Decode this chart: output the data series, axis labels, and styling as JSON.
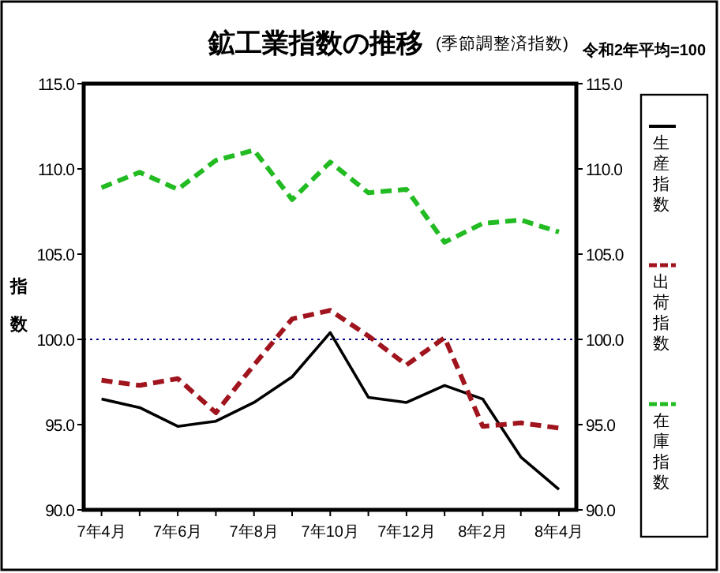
{
  "chart_data": {
    "type": "line",
    "title": "鉱工業指数の推移",
    "subtitle": "(季節調整済指数)",
    "annotations": [
      "令和2年平均=100"
    ],
    "ylabel": "指数",
    "categories": [
      "7年4月",
      null,
      "7年6月",
      null,
      "7年8月",
      null,
      "7年10月",
      null,
      "7年12月",
      null,
      "8年2月",
      null,
      "8年4月"
    ],
    "series": [
      {
        "name": "生産指数",
        "color": "#000000",
        "line_style": "solid",
        "values": [
          96.5,
          96.0,
          94.9,
          95.2,
          96.3,
          97.8,
          100.4,
          96.6,
          96.3,
          97.3,
          96.5,
          93.1,
          91.2
        ]
      },
      {
        "name": "出荷指数",
        "color": "#a0141e",
        "line_style": "dashed",
        "values": [
          97.6,
          97.3,
          97.7,
          95.7,
          98.5,
          101.2,
          101.7,
          100.2,
          98.5,
          100.1,
          94.9,
          95.1,
          94.8
        ]
      },
      {
        "name": "在庫指数",
        "color": "#22bb22",
        "line_style": "dashed",
        "values": [
          108.9,
          109.8,
          108.8,
          110.5,
          111.1,
          108.2,
          110.4,
          108.6,
          108.8,
          105.7,
          106.8,
          107.0,
          106.3
        ]
      }
    ],
    "ylim": [
      90,
      115
    ],
    "yticks": [
      {
        "value": 90,
        "label": "90.0"
      },
      {
        "value": 95,
        "label": "95.0"
      },
      {
        "value": 100,
        "label": "100.0"
      },
      {
        "value": 105,
        "label": "105.0"
      },
      {
        "value": 110,
        "label": "110.0"
      },
      {
        "value": 115,
        "label": "115.0"
      }
    ],
    "y2lim": [
      90,
      115
    ],
    "y2ticks": [
      {
        "value": 90,
        "label": "90.0"
      },
      {
        "value": 95,
        "label": "95.0"
      },
      {
        "value": 100,
        "label": "100.0"
      },
      {
        "value": 105,
        "label": "105.0"
      },
      {
        "value": 110,
        "label": "110.0"
      },
      {
        "value": 115,
        "label": "115.0"
      }
    ],
    "ref_lines": [
      {
        "axis": "y",
        "value": 100,
        "color": "#000080",
        "line_style": "dotted"
      }
    ],
    "grid": false,
    "legend": "right",
    "marker": "none"
  }
}
